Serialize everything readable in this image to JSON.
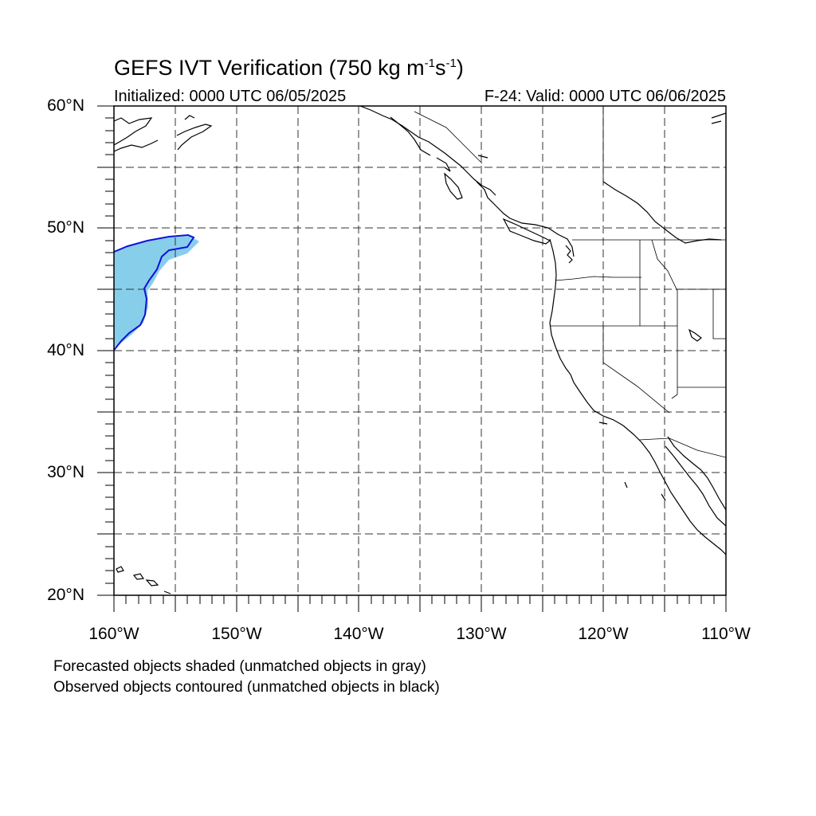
{
  "title": {
    "main": "GEFS IVT Verification (750 kg m",
    "sup1": "-1",
    "mid": "s",
    "sup2": "-1",
    "end": ")"
  },
  "subtitle": {
    "initialized": "Initialized: 0000 UTC 06/05/2025",
    "valid": "F-24: Valid: 0000 UTC 06/06/2025"
  },
  "map": {
    "lon_range": [
      -160,
      -110
    ],
    "lat_range": [
      20,
      60
    ],
    "lat_labels": [
      "60°N",
      "50°N",
      "40°N",
      "30°N",
      "20°N"
    ],
    "lon_labels": [
      "160°W",
      "150°W",
      "140°W",
      "130°W",
      "120°W",
      "110°W"
    ],
    "gridlines": "dashed every 5 degrees",
    "forecast_fill_color": "#87ceeb",
    "observed_contour_color": "#1010dd"
  },
  "legend": {
    "line1": "Forecasted objects shaded (unmatched objects in gray)",
    "line2": "Observed objects contoured (unmatched objects in black)"
  }
}
